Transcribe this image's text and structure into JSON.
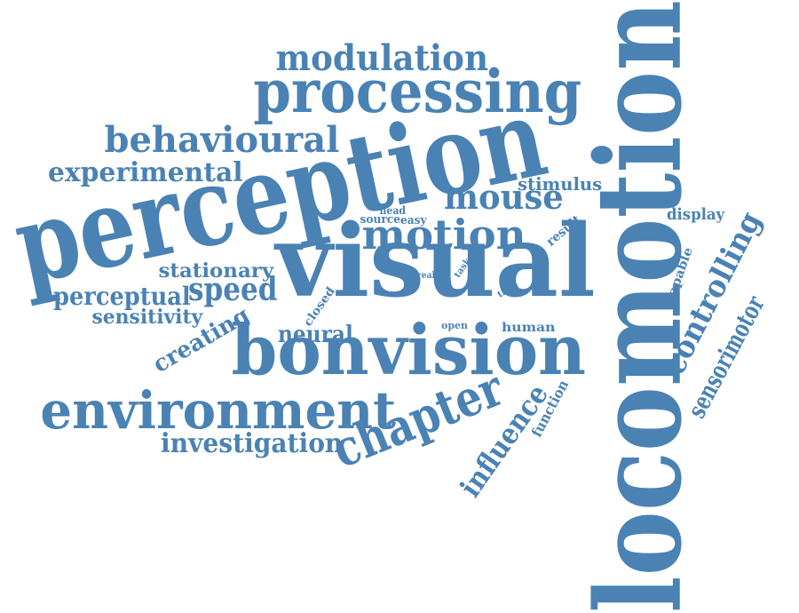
{
  "colors": {
    "word": "#4a82b4",
    "background": "#ffffff"
  },
  "words": [
    {
      "id": "locomotion",
      "text": "locomotion"
    },
    {
      "id": "perception",
      "text": "perception"
    },
    {
      "id": "visual",
      "text": "visual"
    },
    {
      "id": "bonvision",
      "text": "bonvision"
    },
    {
      "id": "processing",
      "text": "processing"
    },
    {
      "id": "environment",
      "text": "environment"
    },
    {
      "id": "modulation",
      "text": "modulation"
    },
    {
      "id": "behavioural",
      "text": "behavioural"
    },
    {
      "id": "motion",
      "text": "motion"
    },
    {
      "id": "mouse",
      "text": "mouse"
    },
    {
      "id": "experimental",
      "text": "experimental"
    },
    {
      "id": "chapter",
      "text": "chapter"
    },
    {
      "id": "speed",
      "text": "speed"
    },
    {
      "id": "perceptual",
      "text": "perceptual"
    },
    {
      "id": "stationary",
      "text": "stationary"
    },
    {
      "id": "sensitivity",
      "text": "sensitivity"
    },
    {
      "id": "creating",
      "text": "creating"
    },
    {
      "id": "neural",
      "text": "neural"
    },
    {
      "id": "investigation",
      "text": "investigation"
    },
    {
      "id": "influence",
      "text": "influence"
    },
    {
      "id": "controlling",
      "text": "controlling"
    },
    {
      "id": "sensorimotor",
      "text": "sensorimotor"
    },
    {
      "id": "stimulus",
      "text": "stimulus"
    },
    {
      "id": "display",
      "text": "display"
    },
    {
      "id": "capable",
      "text": "capable"
    },
    {
      "id": "result",
      "text": "result"
    },
    {
      "id": "function",
      "text": "function"
    },
    {
      "id": "human",
      "text": "human"
    },
    {
      "id": "closed",
      "text": "closed"
    },
    {
      "id": "open",
      "text": "open"
    },
    {
      "id": "head",
      "text": "head"
    },
    {
      "id": "source",
      "text": "source"
    },
    {
      "id": "easy",
      "text": "easy"
    },
    {
      "id": "task",
      "text": "task"
    },
    {
      "id": "time",
      "text": "time"
    },
    {
      "id": "real",
      "text": "real"
    }
  ]
}
